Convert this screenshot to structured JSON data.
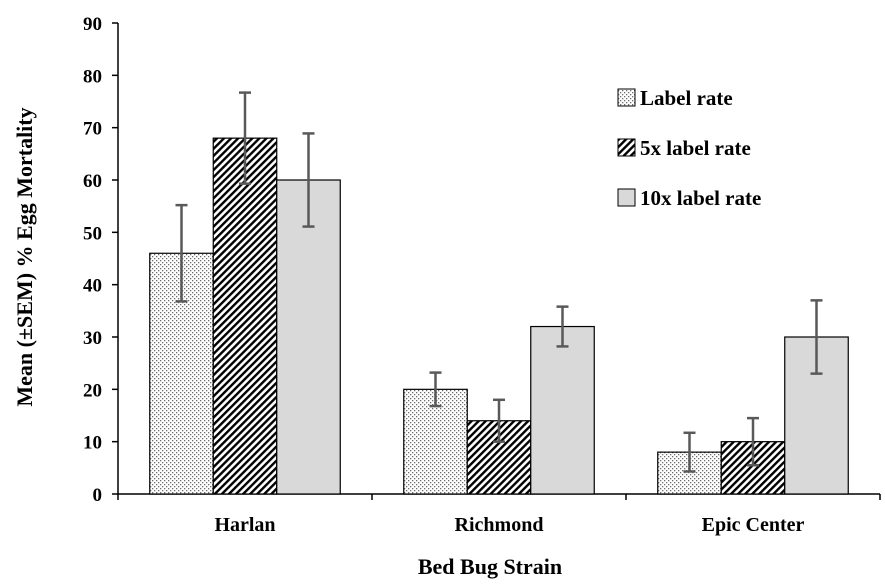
{
  "chart_data": {
    "type": "bar",
    "title": "",
    "xlabel": "Bed Bug Strain",
    "ylabel": "Mean (±SEM) % Egg Mortality",
    "ylim": [
      0,
      90
    ],
    "yticks": [
      "0",
      "10",
      "20",
      "30",
      "40",
      "50",
      "60",
      "70",
      "80",
      "90"
    ],
    "categories": [
      "Harlan",
      "Richmond",
      "Epic Center"
    ],
    "series": [
      {
        "name": "Label rate",
        "pattern": "dots",
        "values": [
          46,
          20,
          8
        ],
        "errors": [
          9.2,
          3.2,
          3.7
        ]
      },
      {
        "name": "5x label rate",
        "pattern": "diagonal",
        "values": [
          68,
          14,
          10
        ],
        "errors": [
          8.7,
          4.0,
          4.5
        ]
      },
      {
        "name": "10x label rate",
        "pattern": "solid",
        "values": [
          60,
          32,
          30
        ],
        "errors": [
          8.9,
          3.8,
          7.0
        ]
      }
    ],
    "grid": false,
    "legend_position": "top-right",
    "colors": {
      "solid_fill": "#d9d9d9",
      "outline": "#000000",
      "error_bar": "#595959",
      "pattern_ink": "#000000"
    }
  }
}
